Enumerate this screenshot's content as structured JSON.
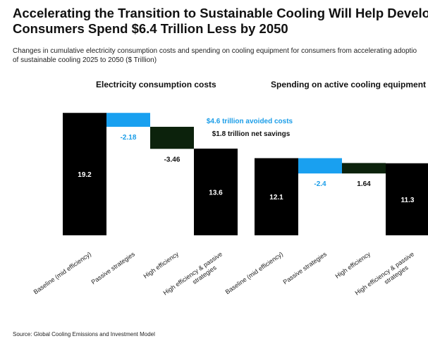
{
  "title_line1": "Accelerating the Transition to Sustainable Cooling Will Help Developing Economy",
  "title_line2": "Consumers Spend $6.4 Trillion Less by 2050",
  "subtitle_line1": "Changes in cumulative electricity consumption costs and spending on cooling equipment for consumers from accelerating adoptio",
  "subtitle_line2": "of sustainable cooling 2025 to 2050 ($ Trillion)",
  "source": "Source: Global Cooling Emissions and Investment Model",
  "annotations": {
    "avoided": "$4.6 trillion avoided costs",
    "net": "$1.8 trillion net savings"
  },
  "colors": {
    "total": "#000000",
    "passive": "#19a0f0",
    "high_efficiency": "#0c220c",
    "annotation_blue": "#1a9de8"
  },
  "chart_data": [
    {
      "type": "bar",
      "subtype": "waterfall",
      "title": "Electricity consumption costs",
      "categories": [
        "Baseline (mid efficiency)",
        "Passive strategies",
        "High efficiency",
        "High efficiency & passive strategies"
      ],
      "values": [
        19.2,
        -2.18,
        -3.46,
        13.6
      ],
      "labels": [
        "19.2",
        "-2.18",
        "-3.46",
        "13.6"
      ],
      "kinds": [
        "total",
        "passive",
        "high_efficiency",
        "total"
      ]
    },
    {
      "type": "bar",
      "subtype": "waterfall",
      "title": "Spending on active cooling equipment",
      "categories": [
        "Baseline (mid efficiency)",
        "Passive strategies",
        "High efficiency",
        "High efficiency & passive strategies"
      ],
      "values": [
        12.1,
        -2.4,
        1.64,
        11.3
      ],
      "labels": [
        "12.1",
        "-2.4",
        "1.64",
        "11.3"
      ],
      "kinds": [
        "total",
        "passive",
        "high_efficiency",
        "total"
      ]
    }
  ]
}
